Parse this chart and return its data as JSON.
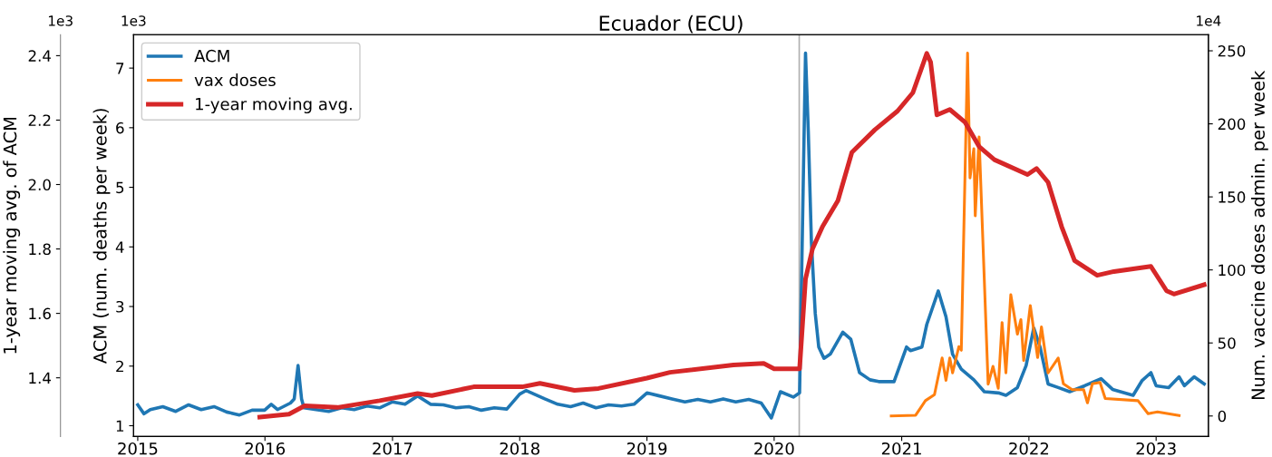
{
  "chart_data": {
    "type": "line",
    "title": "Ecuador (ECU)",
    "ylabel": "ACM (num. deaths per week)",
    "y2label": "Num. vaccine doses admin. per week",
    "y3label": "1-year moving avg. of ACM",
    "annotations": [
      "1e3",
      "1e3",
      "1e4"
    ],
    "xlim": [
      "2014-12-20",
      "2023-05-31"
    ],
    "xticks": [
      {
        "value": "2015-01-01",
        "label": "2015"
      },
      {
        "value": "2016-01-01",
        "label": "2016"
      },
      {
        "value": "2017-01-01",
        "label": "2017"
      },
      {
        "value": "2018-01-01",
        "label": "2018"
      },
      {
        "value": "2019-01-01",
        "label": "2019"
      },
      {
        "value": "2020-01-01",
        "label": "2020"
      },
      {
        "value": "2021-01-01",
        "label": "2021"
      },
      {
        "value": "2022-01-01",
        "label": "2022"
      },
      {
        "value": "2023-01-01",
        "label": "2023"
      }
    ],
    "ylim": [
      0.82,
      7.56
    ],
    "yticks": [
      1,
      2,
      3,
      4,
      5,
      6,
      7
    ],
    "y2lim": [
      -14,
      261
    ],
    "y2ticks": [
      0,
      50,
      100,
      150,
      200,
      250
    ],
    "y3lim": [
      1.218,
      2.465
    ],
    "y3ticks": [
      1.4,
      1.6,
      1.8,
      {
        "value": 2.0,
        "label": "2.0"
      },
      2.2,
      2.4
    ],
    "grid": false,
    "legend": "top left",
    "marker": "none",
    "line_style": "solid",
    "ref_lines": [
      {
        "axis": "x",
        "value": "2020-03-13",
        "color": "#b0b0b0"
      }
    ],
    "series": [
      {
        "name": "ACM",
        "color": "#1f77b4",
        "x": [
          "2015-01-01",
          "2015-01-19",
          "2015-02-06",
          "2015-03-14",
          "2015-04-20",
          "2015-05-27",
          "2015-07-02",
          "2015-08-08",
          "2015-09-13",
          "2015-10-20",
          "2015-11-25",
          "2015-12-31",
          "2016-01-19",
          "2016-02-06",
          "2016-03-14",
          "2016-03-25",
          "2016-04-05",
          "2016-04-15",
          "2016-04-22",
          "2016-05-27",
          "2016-07-02",
          "2016-08-08",
          "2016-09-13",
          "2016-10-20",
          "2016-11-25",
          "2017-01-01",
          "2017-02-06",
          "2017-03-14",
          "2017-04-20",
          "2017-05-27",
          "2017-07-02",
          "2017-08-08",
          "2017-09-13",
          "2017-10-20",
          "2017-11-25",
          "2018-01-01",
          "2018-01-19",
          "2018-03-14",
          "2018-04-20",
          "2018-05-27",
          "2018-07-02",
          "2018-08-08",
          "2018-09-13",
          "2018-10-20",
          "2018-11-25",
          "2019-01-01",
          "2019-02-06",
          "2019-03-14",
          "2019-04-20",
          "2019-05-27",
          "2019-07-02",
          "2019-08-08",
          "2019-09-13",
          "2019-10-20",
          "2019-11-25",
          "2019-12-24",
          "2020-01-19",
          "2020-02-25",
          "2020-03-14",
          "2020-03-31",
          "2020-04-08",
          "2020-04-17",
          "2020-04-28",
          "2020-05-08",
          "2020-05-23",
          "2020-06-10",
          "2020-07-16",
          "2020-08-08",
          "2020-09-02",
          "2020-10-02",
          "2020-10-27",
          "2020-12-10",
          "2021-01-15",
          "2021-01-26",
          "2021-02-28",
          "2021-03-14",
          "2021-04-16",
          "2021-05-08",
          "2021-05-27",
          "2021-06-21",
          "2021-07-27",
          "2021-08-26",
          "2021-10-06",
          "2021-10-27",
          "2021-11-29",
          "2021-12-24",
          "2022-01-15",
          "2022-02-02",
          "2022-02-25",
          "2022-03-26",
          "2022-04-28",
          "2022-06-10",
          "2022-07-27",
          "2022-08-29",
          "2022-10-27",
          "2022-11-22",
          "2022-12-17",
          "2023-01-01",
          "2023-02-06",
          "2023-03-08",
          "2023-03-23",
          "2023-04-20",
          "2023-05-19"
        ],
        "values": [
          1.35,
          1.2,
          1.27,
          1.32,
          1.24,
          1.35,
          1.27,
          1.32,
          1.23,
          1.18,
          1.26,
          1.26,
          1.36,
          1.27,
          1.38,
          1.45,
          2.01,
          1.45,
          1.3,
          1.27,
          1.24,
          1.3,
          1.27,
          1.33,
          1.3,
          1.4,
          1.36,
          1.5,
          1.36,
          1.35,
          1.3,
          1.32,
          1.26,
          1.3,
          1.28,
          1.53,
          1.59,
          1.45,
          1.36,
          1.32,
          1.38,
          1.3,
          1.35,
          1.33,
          1.36,
          1.55,
          1.5,
          1.45,
          1.4,
          1.44,
          1.4,
          1.45,
          1.4,
          1.44,
          1.38,
          1.13,
          1.57,
          1.48,
          1.55,
          7.25,
          5.94,
          4.07,
          2.88,
          2.32,
          2.13,
          2.2,
          2.57,
          2.45,
          1.89,
          1.77,
          1.74,
          1.74,
          2.32,
          2.26,
          2.32,
          2.7,
          3.26,
          2.83,
          2.2,
          1.95,
          1.77,
          1.57,
          1.55,
          1.51,
          1.64,
          2.01,
          2.64,
          2.32,
          1.7,
          1.64,
          1.57,
          1.67,
          1.79,
          1.61,
          1.51,
          1.76,
          1.89,
          1.67,
          1.64,
          1.82,
          1.67,
          1.82,
          1.7
        ]
      },
      {
        "name": "vax doses",
        "color": "#ff7f0e",
        "axis": "y2",
        "x": [
          "2020-12-02",
          "2021-02-10",
          "2021-03-10",
          "2021-04-05",
          "2021-04-27",
          "2021-05-08",
          "2021-05-19",
          "2021-05-27",
          "2021-06-14",
          "2021-06-21",
          "2021-07-09",
          "2021-07-16",
          "2021-07-27",
          "2021-07-31",
          "2021-08-11",
          "2021-09-06",
          "2021-09-20",
          "2021-10-05",
          "2021-10-16",
          "2021-10-27",
          "2021-11-10",
          "2021-11-29",
          "2021-12-09",
          "2021-12-17",
          "2022-01-05",
          "2022-01-26",
          "2022-02-06",
          "2022-02-25",
          "2022-03-26",
          "2022-04-10",
          "2022-05-05",
          "2022-06-07",
          "2022-06-18",
          "2022-07-02",
          "2022-07-24",
          "2022-08-08",
          "2022-11-10",
          "2022-12-09",
          "2023-01-05",
          "2023-03-08"
        ],
        "values": [
          0,
          0.5,
          10.5,
          14.6,
          39.7,
          24.4,
          39.7,
          29.5,
          47.5,
          45,
          248.5,
          163,
          183,
          137,
          191,
          21.8,
          34,
          19,
          64,
          29.5,
          83,
          56,
          66,
          38,
          75.6,
          40,
          61,
          29.5,
          39.7,
          22,
          18,
          18,
          9,
          22,
          23,
          12,
          10.5,
          1.6,
          2.8,
          0.3
        ]
      },
      {
        "name": "1-year moving avg.",
        "color": "#d62728",
        "axis": "y3",
        "x": [
          "2015-12-17",
          "2016-03-10",
          "2016-04-24",
          "2016-07-27",
          "2016-11-25",
          "2017-03-14",
          "2017-04-24",
          "2017-08-22",
          "2018-01-08",
          "2018-02-28",
          "2018-06-07",
          "2018-08-15",
          "2019-01-01",
          "2019-03-08",
          "2019-09-06",
          "2019-12-02",
          "2020-01-01",
          "2020-03-14",
          "2020-03-31",
          "2020-04-20",
          "2020-05-19",
          "2020-07-02",
          "2020-08-11",
          "2020-10-16",
          "2020-12-20",
          "2021-02-02",
          "2021-03-14",
          "2021-03-25",
          "2021-04-12",
          "2021-05-19",
          "2021-07-02",
          "2021-08-11",
          "2021-09-24",
          "2021-12-28",
          "2022-01-23",
          "2022-02-25",
          "2022-04-05",
          "2022-05-12",
          "2022-07-16",
          "2022-09-02",
          "2022-12-17",
          "2023-01-31",
          "2023-02-21",
          "2023-05-19"
        ],
        "values": [
          1.278,
          1.287,
          1.313,
          1.308,
          1.329,
          1.351,
          1.345,
          1.372,
          1.372,
          1.383,
          1.361,
          1.367,
          1.399,
          1.417,
          1.44,
          1.445,
          1.428,
          1.428,
          1.707,
          1.8,
          1.87,
          1.95,
          2.1,
          2.17,
          2.228,
          2.285,
          2.407,
          2.38,
          2.216,
          2.233,
          2.193,
          2.118,
          2.077,
          2.031,
          2.05,
          2.007,
          1.869,
          1.764,
          1.718,
          1.73,
          1.746,
          1.67,
          1.66,
          1.689
        ]
      }
    ]
  }
}
